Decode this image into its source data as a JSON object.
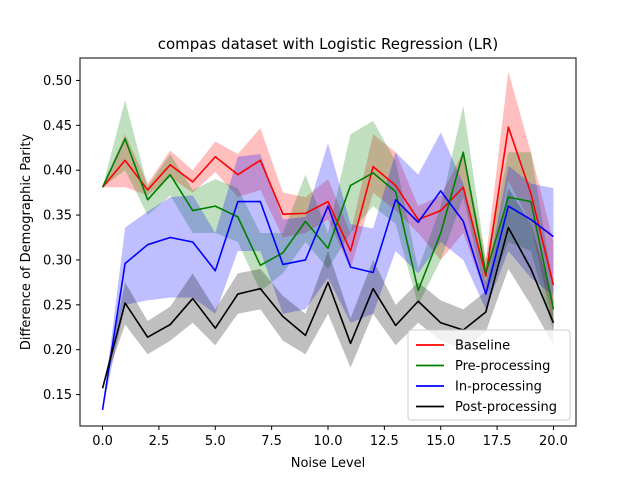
{
  "chart_data": {
    "type": "line",
    "title": "compas dataset with Logistic Regression (LR)",
    "xlabel": "Noise Level",
    "ylabel": "Difference of Demographic Parity",
    "xlim": [
      -1.0,
      21.0
    ],
    "ylim": [
      0.115,
      0.525
    ],
    "xticks": [
      0.0,
      2.5,
      5.0,
      7.5,
      10.0,
      12.5,
      15.0,
      17.5,
      20.0
    ],
    "xtick_labels": [
      "0.0",
      "2.5",
      "5.0",
      "7.5",
      "10.0",
      "12.5",
      "15.0",
      "17.5",
      "20.0"
    ],
    "yticks": [
      0.15,
      0.2,
      0.25,
      0.3,
      0.35,
      0.4,
      0.45,
      0.5
    ],
    "ytick_labels": [
      "0.15",
      "0.20",
      "0.25",
      "0.30",
      "0.35",
      "0.40",
      "0.45",
      "0.50"
    ],
    "grid": false,
    "legend_position": "bottom-right",
    "x": [
      0,
      1,
      2,
      3,
      4,
      5,
      6,
      7,
      8,
      9,
      10,
      11,
      12,
      13,
      14,
      15,
      16,
      17,
      18,
      19,
      20
    ],
    "series": [
      {
        "name": "Baseline",
        "color": "#ff0000",
        "values": [
          0.381,
          0.411,
          0.378,
          0.406,
          0.387,
          0.415,
          0.395,
          0.411,
          0.351,
          0.352,
          0.365,
          0.31,
          0.404,
          0.383,
          0.345,
          0.355,
          0.381,
          0.282,
          0.448,
          0.374,
          0.272
        ],
        "lower": [
          0.381,
          0.381,
          0.372,
          0.392,
          0.375,
          0.398,
          0.37,
          0.378,
          0.325,
          0.33,
          0.345,
          0.29,
          0.375,
          0.355,
          0.33,
          0.3,
          0.33,
          0.26,
          0.388,
          0.34,
          0.225
        ],
        "upper": [
          0.381,
          0.44,
          0.385,
          0.422,
          0.4,
          0.432,
          0.418,
          0.447,
          0.375,
          0.37,
          0.39,
          0.33,
          0.44,
          0.42,
          0.36,
          0.372,
          0.42,
          0.3,
          0.51,
          0.42,
          0.32
        ]
      },
      {
        "name": "Pre-processing",
        "color": "#008000",
        "values": [
          0.381,
          0.435,
          0.367,
          0.395,
          0.355,
          0.36,
          0.348,
          0.294,
          0.308,
          0.343,
          0.313,
          0.383,
          0.397,
          0.376,
          0.266,
          0.33,
          0.42,
          0.285,
          0.37,
          0.365,
          0.245
        ],
        "lower": [
          0.381,
          0.4,
          0.35,
          0.372,
          0.33,
          0.33,
          0.32,
          0.265,
          0.285,
          0.32,
          0.29,
          0.33,
          0.36,
          0.34,
          0.25,
          0.3,
          0.37,
          0.26,
          0.32,
          0.31,
          0.22
        ],
        "upper": [
          0.381,
          0.478,
          0.382,
          0.418,
          0.378,
          0.39,
          0.38,
          0.33,
          0.33,
          0.395,
          0.33,
          0.44,
          0.455,
          0.41,
          0.29,
          0.36,
          0.472,
          0.3,
          0.42,
          0.42,
          0.27
        ]
      },
      {
        "name": "In-processing",
        "color": "#0000ff",
        "values": [
          0.133,
          0.296,
          0.317,
          0.325,
          0.32,
          0.288,
          0.365,
          0.365,
          0.295,
          0.3,
          0.36,
          0.292,
          0.286,
          0.367,
          0.342,
          0.377,
          0.343,
          0.262,
          0.36,
          0.345,
          0.326
        ],
        "lower": [
          0.133,
          0.25,
          0.255,
          0.258,
          0.258,
          0.24,
          0.31,
          0.31,
          0.24,
          0.245,
          0.28,
          0.23,
          0.24,
          0.31,
          0.285,
          0.32,
          0.3,
          0.245,
          0.31,
          0.28,
          0.26
        ],
        "upper": [
          0.133,
          0.336,
          0.354,
          0.37,
          0.372,
          0.33,
          0.415,
          0.418,
          0.345,
          0.348,
          0.43,
          0.34,
          0.335,
          0.42,
          0.395,
          0.442,
          0.385,
          0.275,
          0.405,
          0.385,
          0.38
        ]
      },
      {
        "name": "Post-processing",
        "color": "#000000",
        "values": [
          0.157,
          0.252,
          0.214,
          0.228,
          0.257,
          0.224,
          0.262,
          0.268,
          0.237,
          0.216,
          0.275,
          0.207,
          0.268,
          0.227,
          0.254,
          0.23,
          0.222,
          0.242,
          0.336,
          0.29,
          0.23
        ],
        "lower": [
          0.157,
          0.228,
          0.195,
          0.21,
          0.23,
          0.205,
          0.24,
          0.245,
          0.21,
          0.195,
          0.24,
          0.18,
          0.24,
          0.205,
          0.23,
          0.21,
          0.2,
          0.22,
          0.29,
          0.25,
          0.205
        ],
        "upper": [
          0.157,
          0.275,
          0.232,
          0.248,
          0.285,
          0.245,
          0.285,
          0.29,
          0.26,
          0.24,
          0.31,
          0.235,
          0.3,
          0.25,
          0.275,
          0.255,
          0.245,
          0.265,
          0.38,
          0.34,
          0.255
        ]
      }
    ]
  }
}
